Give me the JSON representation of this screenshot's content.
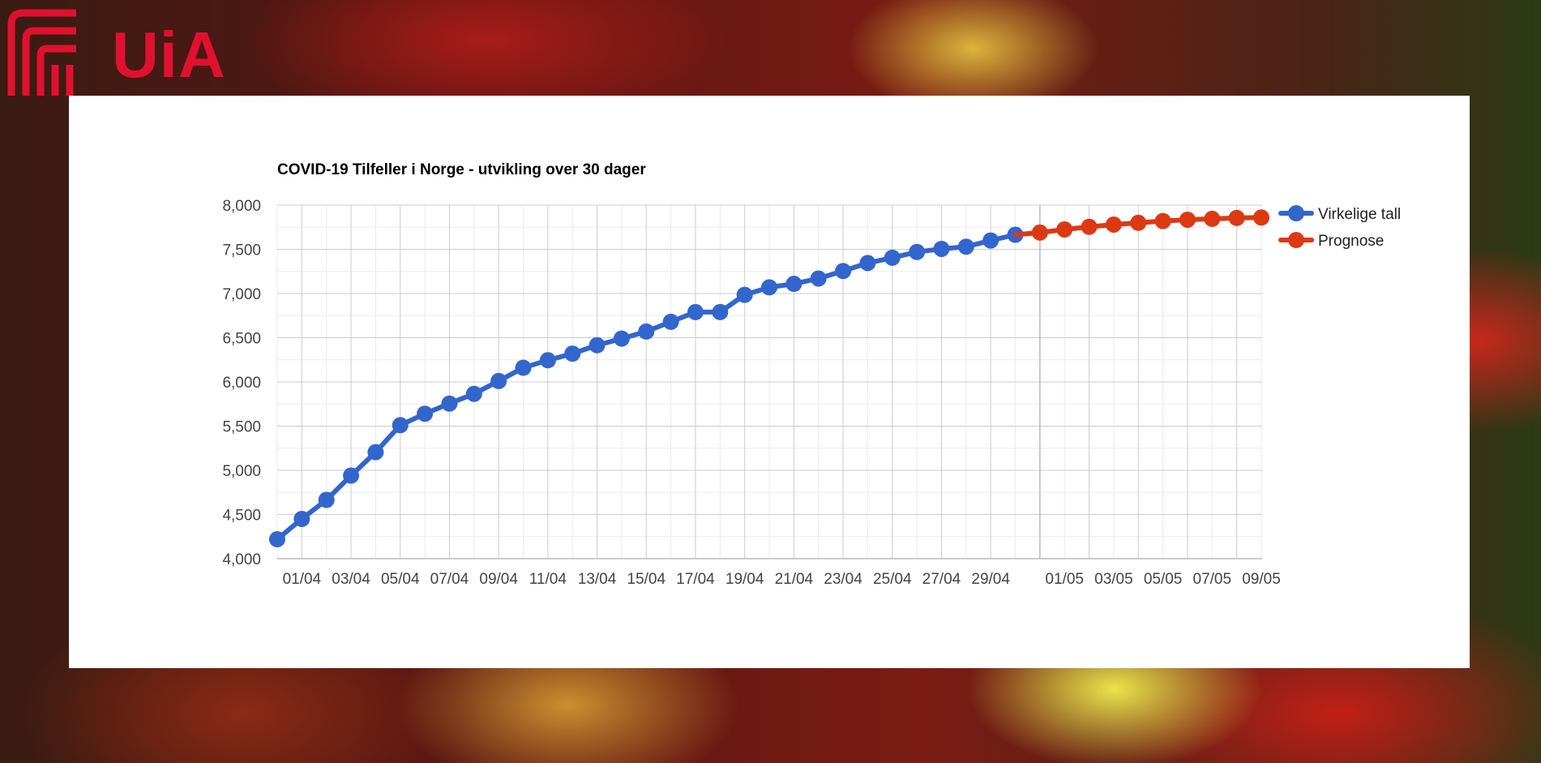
{
  "logo": {
    "text": "UiA",
    "color": "#e0112f"
  },
  "chart_data": {
    "type": "line",
    "title": "COVID-19 Tilfeller i Norge - utvikling over 30 dager",
    "xlabel": "",
    "ylabel": "",
    "ylim": [
      4000,
      8000
    ],
    "yticks": [
      "4,000",
      "4,500",
      "5,000",
      "5,500",
      "6,000",
      "6,500",
      "7,000",
      "7,500",
      "8,000"
    ],
    "xtick_labels": [
      "01/04",
      "03/04",
      "05/04",
      "07/04",
      "09/04",
      "11/04",
      "13/04",
      "15/04",
      "17/04",
      "19/04",
      "21/04",
      "23/04",
      "25/04",
      "27/04",
      "29/04",
      "01/05",
      "03/05",
      "05/05",
      "07/05",
      "09/05"
    ],
    "grid": true,
    "legend": "right",
    "series": [
      {
        "name": "Virkelige tall",
        "color": "#3366cc",
        "x": [
          "31/03",
          "01/04",
          "02/04",
          "03/04",
          "04/04",
          "05/04",
          "06/04",
          "07/04",
          "08/04",
          "09/04",
          "10/04",
          "11/04",
          "12/04",
          "13/04",
          "14/04",
          "15/04",
          "16/04",
          "17/04",
          "18/04",
          "19/04",
          "20/04",
          "21/04",
          "22/04",
          "23/04",
          "24/04",
          "25/04",
          "26/04",
          "27/04",
          "28/04",
          "29/04",
          "30/04"
        ],
        "values": [
          4220,
          4450,
          4665,
          4940,
          5205,
          5510,
          5640,
          5755,
          5865,
          6010,
          6160,
          6245,
          6320,
          6415,
          6490,
          6570,
          6680,
          6790,
          6790,
          6985,
          7070,
          7110,
          7170,
          7255,
          7345,
          7405,
          7470,
          7505,
          7530,
          7600,
          7665
        ]
      },
      {
        "name": "Prognose",
        "color": "#dc3912",
        "x": [
          "01/05",
          "02/05",
          "03/05",
          "04/05",
          "05/05",
          "06/05",
          "07/05",
          "08/05",
          "09/05",
          "10/05"
        ],
        "values": [
          7690,
          7725,
          7755,
          7780,
          7800,
          7820,
          7835,
          7845,
          7855,
          7860
        ]
      }
    ]
  }
}
